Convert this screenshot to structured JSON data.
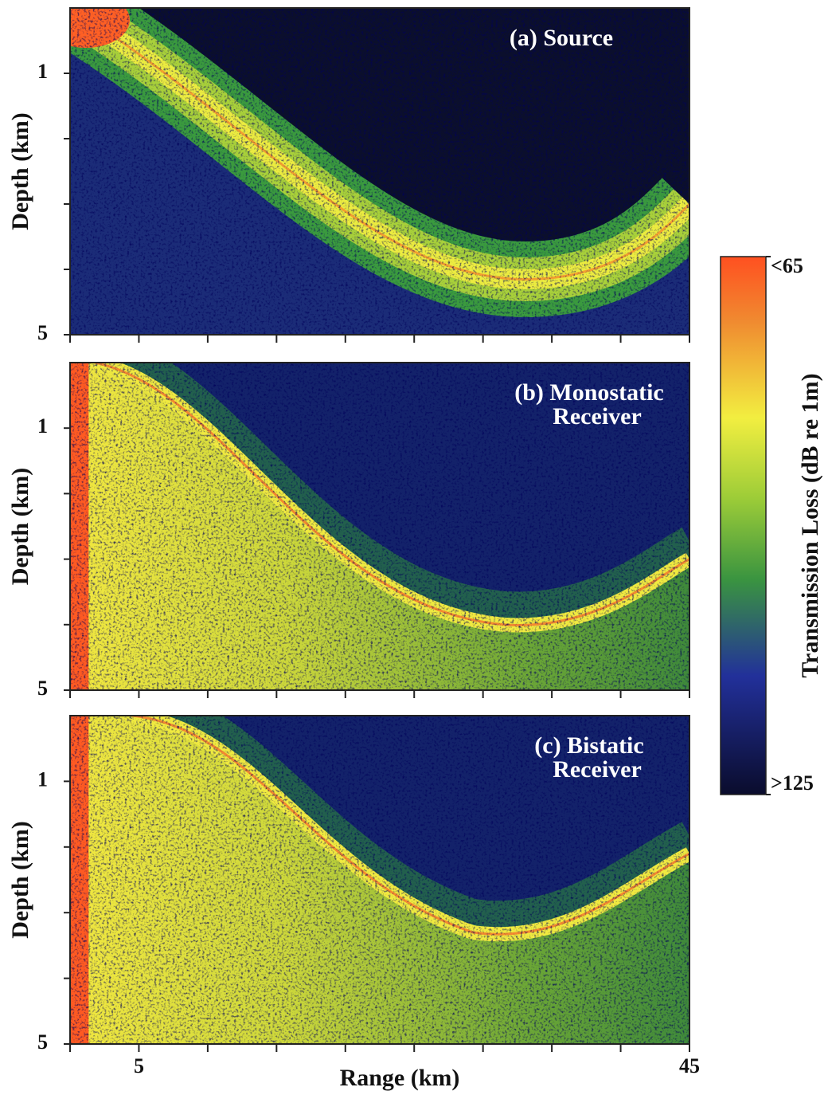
{
  "chart_data": [
    {
      "type": "heatmap",
      "title": [
        "(a) Source"
      ],
      "ylabel": "Depth (km)",
      "ylim": [
        0,
        5
      ],
      "yticks": [
        1,
        5
      ],
      "ytick_marks": [
        2,
        3,
        4
      ],
      "xlim": [
        0,
        45
      ],
      "xtick_marks": [
        0,
        5,
        10,
        15,
        20,
        25,
        30,
        35,
        40,
        45
      ]
    },
    {
      "type": "heatmap",
      "title": [
        "(b) Monostatic",
        "Receiver"
      ],
      "ylabel": "Depth (km)",
      "ylim": [
        0,
        5
      ],
      "yticks": [
        1,
        5
      ],
      "ytick_marks": [
        2,
        3,
        4
      ],
      "xlim": [
        0,
        45
      ],
      "xtick_marks": [
        0,
        5,
        10,
        15,
        20,
        25,
        30,
        35,
        40,
        45
      ]
    },
    {
      "type": "heatmap",
      "title": [
        "(c) Bistatic",
        "Receiver"
      ],
      "ylabel": "Depth (km)",
      "ylim": [
        0,
        5
      ],
      "yticks": [
        1,
        5
      ],
      "ytick_marks": [
        2,
        3,
        4
      ],
      "xlim": [
        0,
        45
      ],
      "xticks": [
        5,
        45
      ],
      "xtick_marks": [
        0,
        10,
        15,
        20,
        25,
        30,
        35,
        40
      ],
      "xlabel": "Range (km)"
    },
    {
      "type": "colorbar",
      "label": "Transmission Loss (dB re 1m)",
      "lim": [
        65,
        125
      ],
      "ticks": [
        {
          "value": 65,
          "label": "<65"
        },
        {
          "value": 125,
          "label": ">125"
        }
      ]
    }
  ]
}
